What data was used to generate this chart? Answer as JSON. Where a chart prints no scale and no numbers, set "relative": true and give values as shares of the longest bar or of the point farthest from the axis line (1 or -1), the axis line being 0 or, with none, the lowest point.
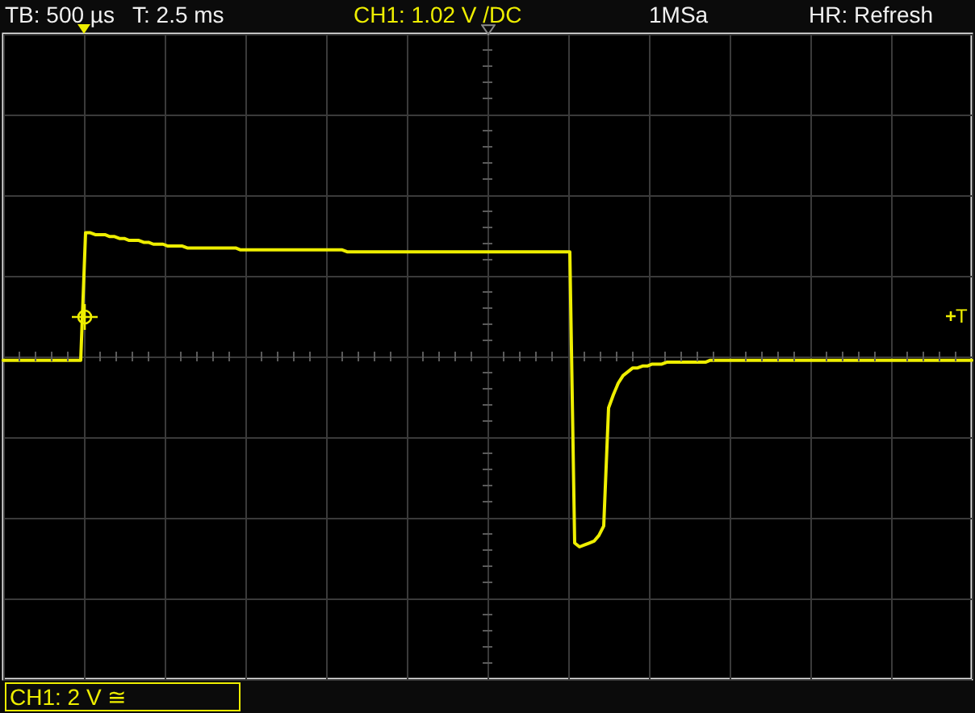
{
  "chart_data": {
    "type": "line",
    "relative": true,
    "categories": [
      null,
      null,
      null,
      null,
      null,
      null,
      null,
      null,
      null,
      null,
      null,
      null,
      null,
      null,
      null,
      null,
      null,
      null,
      null,
      null,
      null,
      null,
      null,
      null,
      null,
      null,
      null,
      null,
      null,
      null,
      null,
      null,
      null,
      null,
      null,
      null,
      null,
      null,
      null,
      null,
      null,
      null,
      null,
      null,
      null,
      null,
      null,
      null,
      null,
      null,
      null,
      null,
      null,
      null,
      null,
      null,
      null,
      null,
      null,
      null,
      null,
      null,
      null,
      null,
      null,
      null,
      null,
      null,
      null,
      null,
      null,
      null,
      null,
      null,
      null,
      null,
      null,
      null,
      null,
      null,
      null,
      null,
      null,
      null,
      null,
      null,
      null,
      null,
      null,
      null,
      null,
      null,
      null,
      null,
      null,
      null,
      null,
      null,
      null,
      null,
      null,
      null,
      null,
      null,
      null,
      null,
      null,
      null,
      null,
      null,
      null,
      null,
      null,
      null,
      null,
      null,
      null,
      null,
      null,
      null,
      null,
      null,
      null,
      null,
      null,
      null,
      null,
      null,
      null,
      null,
      null,
      null,
      null,
      null,
      null,
      null,
      null,
      null,
      null,
      null,
      null,
      null,
      null,
      null,
      null,
      null,
      null,
      null,
      null,
      null,
      null,
      null,
      null,
      null,
      null,
      null,
      null,
      null,
      null,
      null,
      null,
      null,
      null,
      null,
      null,
      null,
      null,
      null,
      null,
      null,
      null,
      null,
      null,
      null,
      null,
      null,
      null,
      null,
      null,
      null,
      null,
      null,
      null,
      null,
      null,
      null,
      null,
      null,
      null,
      null,
      null,
      null,
      null,
      null,
      null,
      null,
      null,
      null,
      null,
      null,
      null
    ],
    "values": [
      -0.02,
      -0.02,
      -0.02,
      -0.02,
      -0.02,
      -0.02,
      -0.02,
      -0.02,
      -0.02,
      -0.02,
      -0.02,
      -0.02,
      -0.02,
      -0.02,
      -0.02,
      -0.02,
      -0.02,
      0.65,
      0.65,
      0.64,
      0.64,
      0.64,
      0.63,
      0.63,
      0.62,
      0.62,
      0.61,
      0.61,
      0.61,
      0.6,
      0.6,
      0.59,
      0.59,
      0.59,
      0.58,
      0.58,
      0.58,
      0.58,
      0.57,
      0.57,
      0.57,
      0.57,
      0.57,
      0.57,
      0.57,
      0.57,
      0.57,
      0.57,
      0.57,
      0.56,
      0.56,
      0.56,
      0.56,
      0.56,
      0.56,
      0.56,
      0.56,
      0.56,
      0.56,
      0.56,
      0.56,
      0.56,
      0.56,
      0.56,
      0.56,
      0.56,
      0.56,
      0.56,
      0.56,
      0.56,
      0.56,
      0.55,
      0.55,
      0.55,
      0.55,
      0.55,
      0.55,
      0.55,
      0.55,
      0.55,
      0.55,
      0.55,
      0.55,
      0.55,
      0.55,
      0.55,
      0.55,
      0.55,
      0.55,
      0.55,
      0.55,
      0.55,
      0.55,
      0.55,
      0.55,
      0.55,
      0.55,
      0.55,
      0.55,
      0.55,
      0.55,
      0.55,
      0.55,
      0.55,
      0.55,
      0.55,
      0.55,
      0.55,
      0.55,
      0.55,
      0.55,
      0.55,
      0.55,
      0.55,
      0.55,
      0.55,
      0.55,
      0.55,
      -0.98,
      -1,
      -0.99,
      -0.98,
      -0.97,
      -0.94,
      -0.89,
      -0.27,
      -0.2,
      -0.14,
      -0.1,
      -0.08,
      -0.06,
      -0.06,
      -0.05,
      -0.05,
      -0.04,
      -0.04,
      -0.04,
      -0.03,
      -0.03,
      -0.03,
      -0.03,
      -0.03,
      -0.03,
      -0.03,
      -0.03,
      -0.03,
      -0.02,
      -0.02,
      -0.02,
      -0.02,
      -0.02,
      -0.02,
      -0.02,
      -0.02,
      -0.02,
      -0.02,
      -0.02,
      -0.02,
      -0.02,
      -0.02,
      -0.02,
      -0.02,
      -0.02,
      -0.02,
      -0.02,
      -0.02,
      -0.02,
      -0.02,
      -0.02,
      -0.02,
      -0.02,
      -0.02,
      -0.02,
      -0.02,
      -0.02,
      -0.02,
      -0.02,
      -0.02,
      -0.02,
      -0.02,
      -0.02,
      -0.02,
      -0.02,
      -0.02,
      -0.02,
      -0.02,
      -0.02,
      -0.02,
      -0.02,
      -0.02,
      -0.02,
      -0.02,
      -0.02,
      -0.02,
      -0.02,
      -0.02,
      -0.02,
      -0.02,
      -0.02,
      -0.02,
      -0.02
    ],
    "color": "#eeee00",
    "marker": "none",
    "line_style": "solid",
    "grid": true,
    "tick_labels": false,
    "annotations": [
      "TB: 500 µs",
      "T: 2.5 ms",
      "CH1: 1.02 V /DC",
      "1MSa",
      "HR: Refresh",
      "CH1: 2 V ≅",
      "T"
    ]
  }
}
